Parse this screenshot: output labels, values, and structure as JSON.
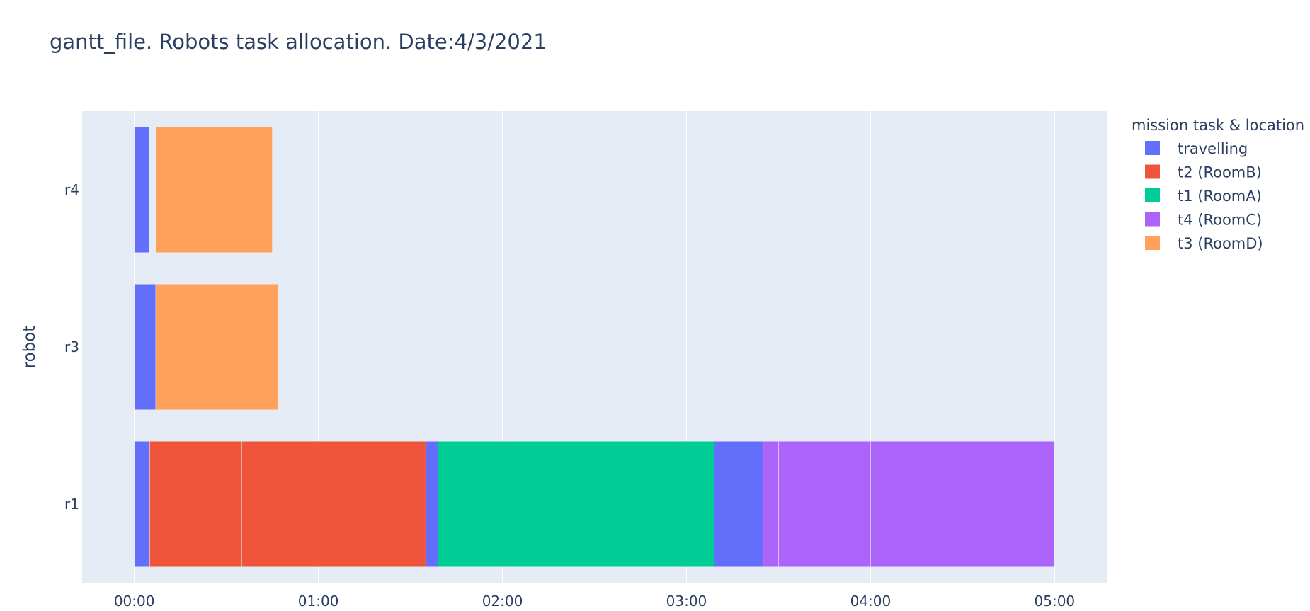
{
  "chart_data": {
    "type": "bar",
    "orientation": "horizontal",
    "subtype": "gantt",
    "title": "gantt_file. Robots task allocation. Date:4/3/2021",
    "xlabel": "",
    "ylabel": "robot",
    "categories": [
      "r1",
      "r3",
      "r4"
    ],
    "x_ticks": [
      "00:00",
      "01:00",
      "02:00",
      "03:00",
      "04:00",
      "05:00"
    ],
    "x_unit": "minutes:seconds",
    "xlim": [
      "-00:17",
      "05:17"
    ],
    "grid": true,
    "legend_title": "mission task & location",
    "legend_position": "top-right",
    "series": [
      {
        "name": "travelling",
        "color": "#636efa",
        "segments": [
          {
            "robot": "r4",
            "start": "00:00",
            "end": "00:05"
          },
          {
            "robot": "r3",
            "start": "00:00",
            "end": "00:07"
          },
          {
            "robot": "r1",
            "start": "00:00",
            "end": "00:05"
          },
          {
            "robot": "r1",
            "start": "01:35",
            "end": "01:39"
          },
          {
            "robot": "r1",
            "start": "03:09",
            "end": "03:25"
          }
        ]
      },
      {
        "name": "t2 (RoomB)",
        "color": "#ef553b",
        "segments": [
          {
            "robot": "r1",
            "start": "00:05",
            "end": "00:35"
          },
          {
            "robot": "r1",
            "start": "00:35",
            "end": "01:35"
          }
        ]
      },
      {
        "name": "t1 (RoomA)",
        "color": "#00cc96",
        "segments": [
          {
            "robot": "r1",
            "start": "01:39",
            "end": "02:09"
          },
          {
            "robot": "r1",
            "start": "02:09",
            "end": "03:09"
          }
        ]
      },
      {
        "name": "t4 (RoomC)",
        "color": "#ab63fa",
        "segments": [
          {
            "robot": "r1",
            "start": "03:25",
            "end": "03:30"
          },
          {
            "robot": "r1",
            "start": "03:30",
            "end": "04:00"
          },
          {
            "robot": "r1",
            "start": "04:00",
            "end": "05:00"
          }
        ]
      },
      {
        "name": "t3 (RoomD)",
        "color": "#ffa15a",
        "segments": [
          {
            "robot": "r4",
            "start": "00:07",
            "end": "00:45"
          },
          {
            "robot": "r3",
            "start": "00:07",
            "end": "00:47"
          }
        ]
      }
    ]
  }
}
